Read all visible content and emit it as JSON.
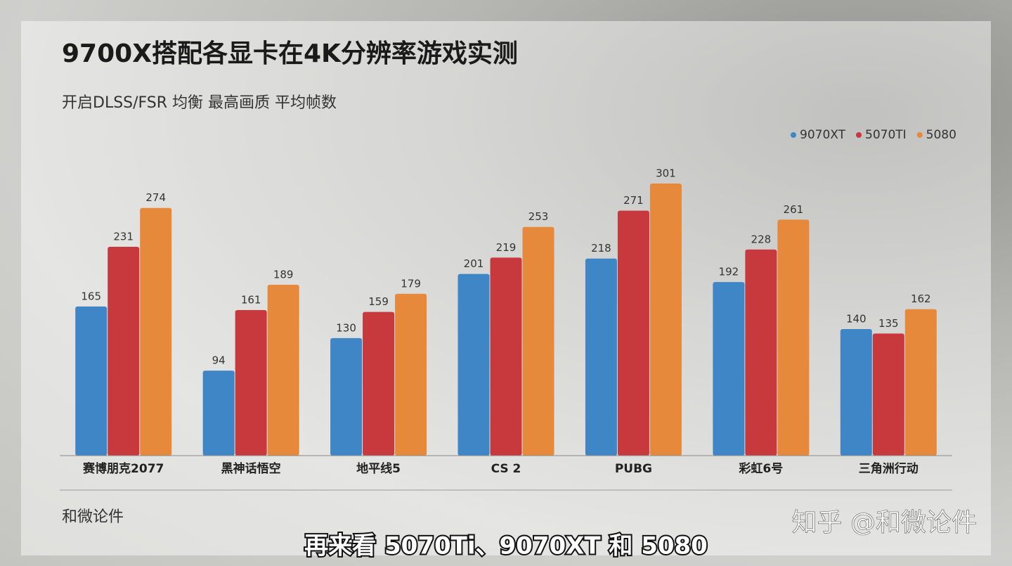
{
  "chart_data": {
    "type": "bar",
    "title": "9700X搭配各显卡在4K分辨率游戏实测",
    "subtitle": "开启DLSS/FSR 均衡 最高画质 平均帧数",
    "categories": [
      "赛博朋克2077",
      "黑神话悟空",
      "地平线5",
      "CS 2",
      "PUBG",
      "彩虹6号",
      "三角洲行动"
    ],
    "series": [
      {
        "name": "9070XT",
        "color": "#3f86c6",
        "values": [
          165,
          94,
          130,
          201,
          218,
          192,
          140
        ]
      },
      {
        "name": "5070TI",
        "color": "#c8393d",
        "values": [
          231,
          161,
          159,
          219,
          271,
          228,
          135
        ]
      },
      {
        "name": "5080",
        "color": "#e7893a",
        "values": [
          274,
          189,
          179,
          253,
          301,
          261,
          162
        ]
      }
    ],
    "ylim": [
      0,
      350
    ],
    "legend": "top-right",
    "source": "和微论件"
  },
  "watermark": "知乎 @和微论件",
  "caption": "再来看 5070Ti、9070XT 和 5080"
}
